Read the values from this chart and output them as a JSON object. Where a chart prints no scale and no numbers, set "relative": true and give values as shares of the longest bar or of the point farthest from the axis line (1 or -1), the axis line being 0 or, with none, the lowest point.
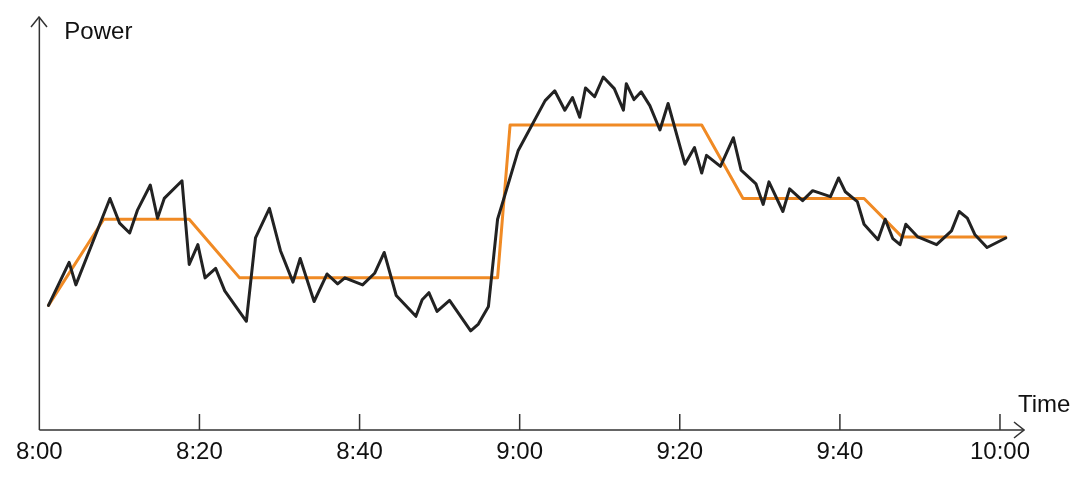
{
  "chart_data": {
    "type": "line",
    "xlabel": "Time",
    "ylabel": "Power",
    "relative": true,
    "legend": false,
    "grid": false,
    "marker": "none",
    "line_style": "solid",
    "xlim": [
      8,
      10.05
    ],
    "xticks": [
      {
        "value": 8,
        "label": "8:00"
      },
      {
        "value": 8.3333,
        "label": "8:20"
      },
      {
        "value": 8.6667,
        "label": "8:40"
      },
      {
        "value": 9,
        "label": "9:00"
      },
      {
        "value": 9.3333,
        "label": "9:20"
      },
      {
        "value": 9.6667,
        "label": "9:40"
      },
      {
        "value": 10,
        "label": "10:00"
      }
    ],
    "series": [
      {
        "color": "#222222",
        "x": [
          8.019,
          8.062,
          8.076,
          8.147,
          8.167,
          8.188,
          8.204,
          8.231,
          8.246,
          8.26,
          8.297,
          8.312,
          8.33,
          8.345,
          8.367,
          8.386,
          8.431,
          8.45,
          8.479,
          8.502,
          8.528,
          8.543,
          8.572,
          8.599,
          8.621,
          8.636,
          8.673,
          8.698,
          8.718,
          8.743,
          8.784,
          8.797,
          8.811,
          8.828,
          8.854,
          8.898,
          8.914,
          8.935,
          8.954,
          8.97,
          8.997,
          9.053,
          9.073,
          9.094,
          9.11,
          9.125,
          9.137,
          9.156,
          9.174,
          9.197,
          9.216,
          9.222,
          9.238,
          9.253,
          9.271,
          9.292,
          9.309,
          9.344,
          9.364,
          9.379,
          9.389,
          9.418,
          9.445,
          9.461,
          9.492,
          9.507,
          9.519,
          9.548,
          9.562,
          9.589,
          9.61,
          9.647,
          9.664,
          9.678,
          9.703,
          9.717,
          9.746,
          9.761,
          9.777,
          9.792,
          9.804,
          9.829,
          9.868,
          9.899,
          9.915,
          9.932,
          9.948,
          9.973,
          10.012
        ],
        "values": [
          0.353,
          0.475,
          0.411,
          0.656,
          0.586,
          0.558,
          0.622,
          0.694,
          0.6,
          0.656,
          0.706,
          0.469,
          0.525,
          0.431,
          0.458,
          0.394,
          0.308,
          0.544,
          0.628,
          0.508,
          0.419,
          0.486,
          0.364,
          0.442,
          0.414,
          0.431,
          0.411,
          0.444,
          0.503,
          0.381,
          0.322,
          0.369,
          0.389,
          0.336,
          0.367,
          0.281,
          0.3,
          0.35,
          0.597,
          0.669,
          0.792,
          0.933,
          0.961,
          0.906,
          0.942,
          0.886,
          0.969,
          0.944,
          1,
          0.967,
          0.906,
          0.981,
          0.936,
          0.958,
          0.919,
          0.85,
          0.925,
          0.753,
          0.8,
          0.728,
          0.778,
          0.747,
          0.828,
          0.736,
          0.697,
          0.639,
          0.703,
          0.619,
          0.683,
          0.65,
          0.678,
          0.661,
          0.714,
          0.675,
          0.647,
          0.583,
          0.539,
          0.597,
          0.542,
          0.525,
          0.583,
          0.547,
          0.525,
          0.564,
          0.619,
          0.6,
          0.553,
          0.517,
          0.544
        ]
      },
      {
        "color": "#f08a24",
        "x": [
          8.019,
          8.134,
          8.312,
          8.417,
          8.954,
          8.98,
          9.379,
          9.465,
          9.717,
          9.796,
          10.012
        ],
        "values": [
          0.353,
          0.597,
          0.597,
          0.431,
          0.431,
          0.864,
          0.864,
          0.656,
          0.656,
          0.547,
          0.547
        ]
      }
    ]
  }
}
